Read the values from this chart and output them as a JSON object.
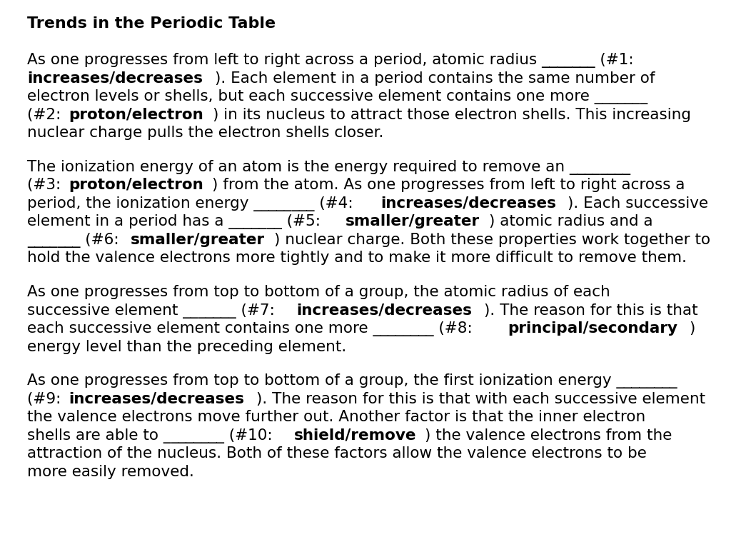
{
  "title": "Trends in the Periodic Table",
  "background_color": "#ffffff",
  "text_color": "#000000",
  "font_size": 15.5,
  "title_font_size": 16,
  "paragraphs": [
    {
      "segments": [
        {
          "text": "As one progresses from left to right across a period, atomic radius _______ (#1:\n",
          "bold": false
        },
        {
          "text": "increases/decreases",
          "bold": true
        },
        {
          "text": "). Each element in a period contains the same number of\nelectron levels or shells, but each successive element contains one more _______\n(#2: ",
          "bold": false
        },
        {
          "text": "proton/electron",
          "bold": true
        },
        {
          "text": ") in its nucleus to attract those electron shells. This increasing\nnuclear charge pulls the electron shells closer.",
          "bold": false
        }
      ]
    },
    {
      "segments": [
        {
          "text": "The ionization energy of an atom is the energy required to remove an ________\n(#3: ",
          "bold": false
        },
        {
          "text": "proton/electron",
          "bold": true
        },
        {
          "text": ") from the atom. As one progresses from left to right across a\nperiod, the ionization energy ________ (#4: ",
          "bold": false
        },
        {
          "text": "increases/decreases",
          "bold": true
        },
        {
          "text": "). Each successive\nelement in a period has a _______ (#5: ",
          "bold": false
        },
        {
          "text": "smaller/greater",
          "bold": true
        },
        {
          "text": ") atomic radius and a\n_______ (#6: ",
          "bold": false
        },
        {
          "text": "smaller/greater",
          "bold": true
        },
        {
          "text": ") nuclear charge. Both these properties work together to\nhold the valence electrons more tightly and to make it more difficult to remove them.",
          "bold": false
        }
      ]
    },
    {
      "segments": [
        {
          "text": "As one progresses from top to bottom of a group, the atomic radius of each\nsuccessive element _______ (#7: ",
          "bold": false
        },
        {
          "text": "increases/decreases",
          "bold": true
        },
        {
          "text": "). The reason for this is that\neach successive element contains one more ________ (#8: ",
          "bold": false
        },
        {
          "text": "principal/secondary",
          "bold": true
        },
        {
          "text": ")\nenergy level than the preceding element.",
          "bold": false
        }
      ]
    },
    {
      "segments": [
        {
          "text": "As one progresses from top to bottom of a group, the first ionization energy ________\n(#9: ",
          "bold": false
        },
        {
          "text": "increases/decreases",
          "bold": true
        },
        {
          "text": "). The reason for this is that with each successive element\nthe valence electrons move further out. Another factor is that the inner electron\nshells are able to ________ (#10: ",
          "bold": false
        },
        {
          "text": "shield/remove",
          "bold": true
        },
        {
          "text": ") the valence electrons from the\nattraction of the nucleus. Both of these factors allow the valence electrons to be\nmore easily removed.",
          "bold": false
        }
      ]
    }
  ]
}
